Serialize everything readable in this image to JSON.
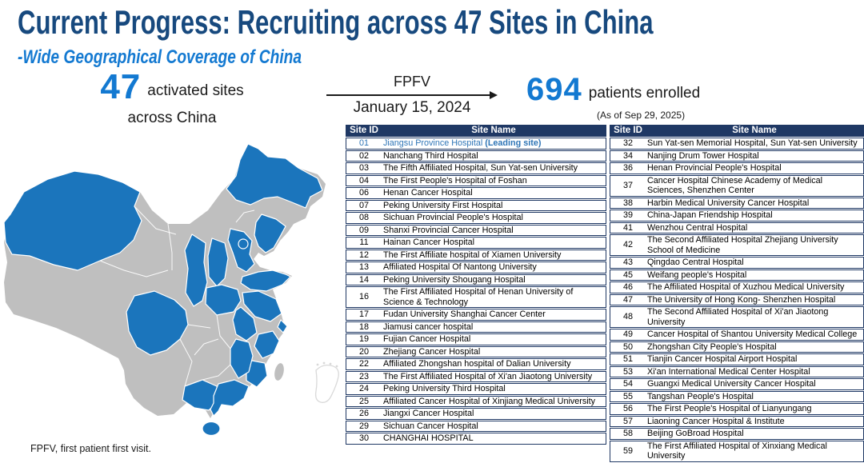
{
  "title": "Current Progress: Recruiting across 47 Sites in China",
  "subtitle": "-Wide Geographical Coverage of China",
  "stats": {
    "activated_sites": {
      "value": "47",
      "label_line1": "activated sites",
      "label_line2": "across China"
    },
    "fpfv": {
      "label": "FPFV",
      "date": "January 15, 2024"
    },
    "enrolled": {
      "value": "694",
      "label": "patients enrolled",
      "as_of": "(As of Sep 29, 2025)"
    }
  },
  "footnote": "FPFV, first patient first visit.",
  "colors": {
    "title_color": "#17497E",
    "accent_blue": "#1379D1",
    "table_header_bg": "#1F3864",
    "table_border": "#1F3864",
    "leading_site_text": "#2E75B6",
    "map_active": "#1B75BC",
    "map_inactive": "#BFBFBF"
  },
  "map": {
    "legend_meaning_blue": "activated provinces",
    "legend_meaning_gray": "provinces without activated sites",
    "activated": [
      "Xinjiang",
      "Heilongjiang",
      "Liaoning",
      "Beijing",
      "Tianjin",
      "Hebei",
      "Shanxi",
      "Shaanxi",
      "Shandong",
      "Henan",
      "Jiangsu",
      "Shanghai",
      "Anhui",
      "Zhejiang",
      "Fujian",
      "Jiangxi",
      "Sichuan",
      "Guangxi",
      "Guangdong",
      "Hainan"
    ],
    "inactive": [
      "Inner Mongolia",
      "Jilin",
      "Gansu",
      "Qinghai",
      "Ningxia",
      "Tibet",
      "Yunnan",
      "Guizhou",
      "Chongqing",
      "Hubei",
      "Hunan",
      "Taiwan"
    ]
  },
  "tables": {
    "headers": {
      "id": "Site ID",
      "name": "Site Name"
    },
    "left_rows": [
      {
        "id": "01",
        "name": "Jiangsu Province Hospital ",
        "suffix": "(Leading site)",
        "leading": true
      },
      {
        "id": "02",
        "name": "Nanchang Third Hospital"
      },
      {
        "id": "03",
        "name": "The Fifth Affiliated Hospital, Sun Yat-sen University"
      },
      {
        "id": "04",
        "name": "The First People's Hospital of Foshan"
      },
      {
        "id": "06",
        "name": "Henan Cancer Hospital"
      },
      {
        "id": "07",
        "name": "Peking University First Hospital"
      },
      {
        "id": "08",
        "name": "Sichuan Provincial People's Hospital"
      },
      {
        "id": "09",
        "name": "Shanxi Provincial Cancer Hospital"
      },
      {
        "id": "11",
        "name": "Hainan Cancer Hospital"
      },
      {
        "id": "12",
        "name": "The First Affiliate hospital of Xiamen University"
      },
      {
        "id": "13",
        "name": "Affiliated Hospital Of Nantong University"
      },
      {
        "id": "14",
        "name": "Peking University Shougang Hospital"
      },
      {
        "id": "16",
        "name": "The First Affiliated Hospital of Henan University of Science & Technology"
      },
      {
        "id": "17",
        "name": "Fudan University Shanghai Cancer Center"
      },
      {
        "id": "18",
        "name": "Jiamusi cancer hospital"
      },
      {
        "id": "19",
        "name": "Fujian Cancer Hospital"
      },
      {
        "id": "20",
        "name": "Zhejiang Cancer Hospital"
      },
      {
        "id": "22",
        "name": "Affiliated Zhongshan hospital of Dalian University"
      },
      {
        "id": "23",
        "name": "The First Affiliated Hospital of Xi'an Jiaotong University"
      },
      {
        "id": "24",
        "name": "Peking University Third Hospital"
      },
      {
        "id": "25",
        "name": "Affiliated Cancer Hospital of Xinjiang Medical University"
      },
      {
        "id": "26",
        "name": "Jiangxi Cancer Hospital"
      },
      {
        "id": "29",
        "name": "Sichuan Cancer Hospital"
      },
      {
        "id": "30",
        "name": "CHANGHAI HOSPITAL"
      }
    ],
    "right_rows": [
      {
        "id": "32",
        "name": "Sun Yat-sen Memorial Hospital, Sun Yat-sen University"
      },
      {
        "id": "34",
        "name": "Nanjing Drum Tower Hospital"
      },
      {
        "id": "36",
        "name": "Henan Provincial People's Hospital"
      },
      {
        "id": "37",
        "name": "Cancer Hospital Chinese Academy of Medical Sciences, Shenzhen Center"
      },
      {
        "id": "38",
        "name": "Harbin Medical University Cancer Hospital"
      },
      {
        "id": "39",
        "name": "China-Japan Friendship Hospital"
      },
      {
        "id": "41",
        "name": "Wenzhou Central Hospital"
      },
      {
        "id": "42",
        "name": "The Second Affiliated Hospital Zhejiang University School of Medicine"
      },
      {
        "id": "43",
        "name": "Qingdao Central Hospital"
      },
      {
        "id": "45",
        "name": "Weifang people's Hospital"
      },
      {
        "id": "46",
        "name": "The Affiliated Hospital of Xuzhou Medical University"
      },
      {
        "id": "47",
        "name": "The University of Hong Kong- Shenzhen Hospital"
      },
      {
        "id": "48",
        "name": "The Second Affiliated Hospital of Xi'an Jiaotong University"
      },
      {
        "id": "49",
        "name": "Cancer Hospital of Shantou University Medical College"
      },
      {
        "id": "50",
        "name": "Zhongshan City People's Hospital"
      },
      {
        "id": "51",
        "name": "Tianjin Cancer Hospital Airport Hospital"
      },
      {
        "id": "53",
        "name": "Xi'an International Medical Center Hospital"
      },
      {
        "id": "54",
        "name": "Guangxi Medical University Cancer Hospital"
      },
      {
        "id": "55",
        "name": "Tangshan People's Hospital"
      },
      {
        "id": "56",
        "name": "The First People's Hospital of Lianyungang"
      },
      {
        "id": "57",
        "name": "Liaoning Cancer Hospital & Institute"
      },
      {
        "id": "58",
        "name": "Beijing GoBroad Hospital"
      },
      {
        "id": "59",
        "name": "The First Affiliated Hospital of Xinxiang Medical University"
      }
    ]
  }
}
